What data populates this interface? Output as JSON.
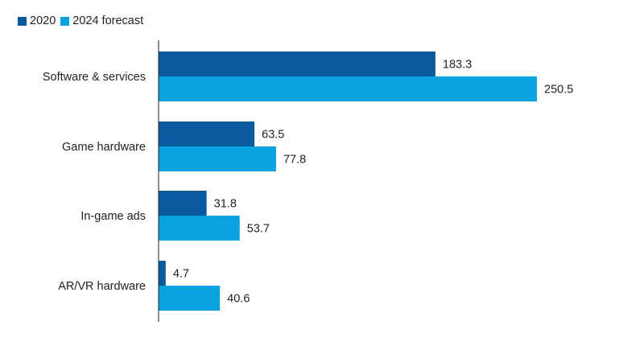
{
  "chart_data": {
    "type": "bar",
    "orientation": "horizontal",
    "categories": [
      "Software & services",
      "Game hardware",
      "In-game ads",
      "AR/VR hardware"
    ],
    "series": [
      {
        "name": "2020",
        "values": [
          183.3,
          63.5,
          31.8,
          4.7
        ],
        "color": "#0b5a9e"
      },
      {
        "name": "2024 forecast",
        "values": [
          250.5,
          77.8,
          53.7,
          40.6
        ],
        "color": "#0aa3e0"
      }
    ],
    "xlim": [
      0,
      250.5
    ],
    "grid": false,
    "legend_position": "top-left",
    "title": "",
    "xlabel": "",
    "ylabel": ""
  }
}
